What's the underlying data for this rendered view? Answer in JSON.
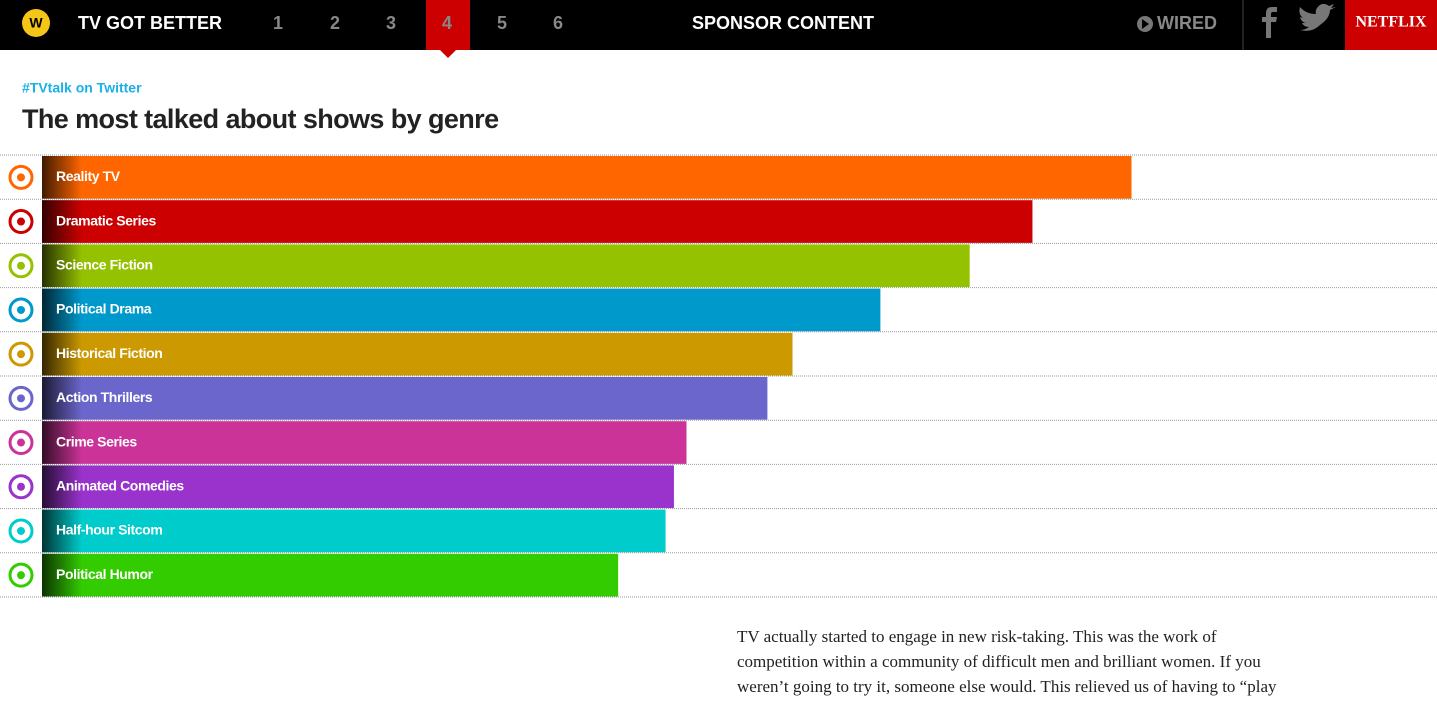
{
  "header": {
    "logo": "W",
    "title": "TV GOT BETTER",
    "nav": [
      "1",
      "2",
      "3",
      "4",
      "5",
      "6"
    ],
    "sponsor": "SPONSOR CONTENT",
    "wired": "WIRED",
    "netflix": "NETFLIX"
  },
  "chart_data": {
    "type": "bar",
    "orientation": "horizontal",
    "subtitle": "#TVtalk on Twitter",
    "title": "The most talked about shows by genre",
    "categories": [
      "Reality TV",
      "Dramatic Series",
      "Science Fiction",
      "Political Drama",
      "Historical Fiction",
      "Action Thrillers",
      "Crime Series",
      "Animated Comedies",
      "Half-hour Sitcom",
      "Political Humor"
    ],
    "values": [
      78.1,
      71.0,
      66.5,
      60.1,
      53.8,
      52.0,
      46.2,
      45.3,
      44.7,
      41.3
    ],
    "colors": [
      "#ff6600",
      "#cc0000",
      "#94c100",
      "#0099cc",
      "#cc9900",
      "#6b66cc",
      "#cc3399",
      "#9933cc",
      "#00cccc",
      "#33cc00"
    ],
    "xlim": [
      0,
      100
    ]
  },
  "article": {
    "lines": [
      "TV actually started to engage in new risk-taking. This was the work of",
      "competition within a community of difficult men and brilliant women. If you",
      "weren’t going to try it, someone else would. This relieved us of having to “play"
    ]
  }
}
